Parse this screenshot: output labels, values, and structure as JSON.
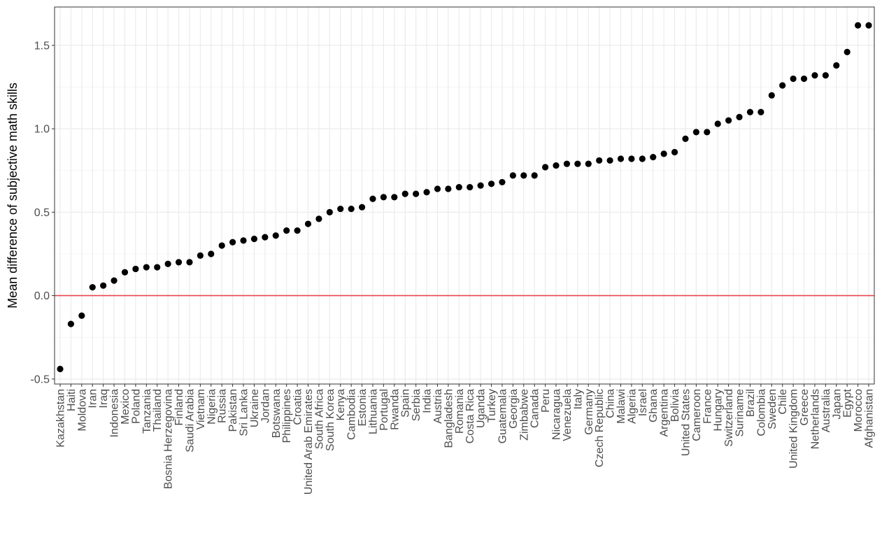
{
  "chart_data": {
    "type": "scatter",
    "title": "",
    "xlabel": "",
    "ylabel": "Mean difference of subjective math skills",
    "ylim": [
      -0.53,
      1.73
    ],
    "yticks": [
      -0.5,
      0.0,
      0.5,
      1.0,
      1.5
    ],
    "ytick_labels": [
      "-0.5",
      "0.0",
      "0.5",
      "1.0",
      "1.5"
    ],
    "reference_line": {
      "y": 0.0,
      "color": "#e8464f"
    },
    "grid": true,
    "legend": "none",
    "point_color": "#000000",
    "categories": [
      "Kazakhstan",
      "Haiti",
      "Moldova",
      "Iran",
      "Iraq",
      "Indonesia",
      "Mexico",
      "Poland",
      "Tanzania",
      "Thailand",
      "Bosnia Herzegovina",
      "Finland",
      "Saudi Arabia",
      "Vietnam",
      "Nigeria",
      "Russia",
      "Pakistan",
      "Sri Lanka",
      "Ukraine",
      "Jordan",
      "Botswana",
      "Philippines",
      "Croatia",
      "United Arab Emirates",
      "South Africa",
      "South Korea",
      "Kenya",
      "Cambodia",
      "Estonia",
      "Lithuania",
      "Portugal",
      "Rwanda",
      "Spain",
      "Serbia",
      "India",
      "Austria",
      "Bangladesh",
      "Romania",
      "Costa Rica",
      "Uganda",
      "Turkey",
      "Guatemala",
      "Georgia",
      "Zimbabwe",
      "Canada",
      "Peru",
      "Nicaragua",
      "Venezuela",
      "Italy",
      "Germany",
      "Czech Republic",
      "China",
      "Malawi",
      "Algeria",
      "Israel",
      "Ghana",
      "Argentina",
      "Bolivia",
      "United States",
      "Cameroon",
      "France",
      "Hungary",
      "Switzerland",
      "Suriname",
      "Brazil",
      "Colombia",
      "Sweden",
      "Chile",
      "United Kingdom",
      "Greece",
      "Netherlands",
      "Australia",
      "Japan",
      "Egypt",
      "Morocco",
      "Afghanistan"
    ],
    "values": [
      -0.44,
      -0.17,
      -0.12,
      0.05,
      0.06,
      0.09,
      0.14,
      0.16,
      0.17,
      0.17,
      0.19,
      0.2,
      0.2,
      0.24,
      0.25,
      0.3,
      0.32,
      0.33,
      0.34,
      0.35,
      0.36,
      0.39,
      0.39,
      0.43,
      0.46,
      0.5,
      0.52,
      0.52,
      0.53,
      0.58,
      0.59,
      0.59,
      0.61,
      0.61,
      0.62,
      0.64,
      0.64,
      0.65,
      0.65,
      0.66,
      0.67,
      0.68,
      0.72,
      0.72,
      0.72,
      0.77,
      0.78,
      0.79,
      0.79,
      0.79,
      0.81,
      0.81,
      0.82,
      0.82,
      0.82,
      0.83,
      0.85,
      0.86,
      0.94,
      0.98,
      0.98,
      1.03,
      1.05,
      1.07,
      1.1,
      1.1,
      1.2,
      1.26,
      1.3,
      1.3,
      1.32,
      1.32,
      1.38,
      1.46,
      1.62,
      1.62
    ]
  }
}
